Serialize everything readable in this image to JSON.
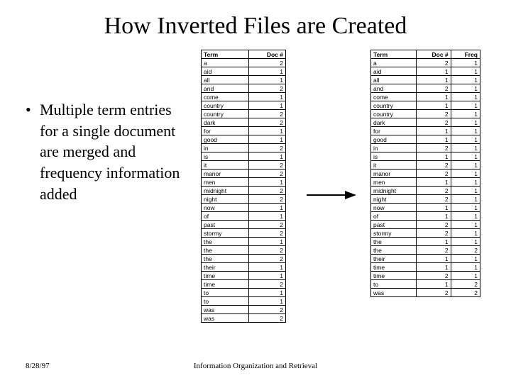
{
  "title": "How Inverted Files are Created",
  "bullet": {
    "text": "Multiple term entries for a single document are merged and frequency information added"
  },
  "footer": {
    "date": "8/28/97",
    "center": "Information Organization and Retrieval"
  },
  "table1": {
    "headers": [
      "Term",
      "Doc #"
    ],
    "rows": [
      [
        "a",
        "2"
      ],
      [
        "aid",
        "1"
      ],
      [
        "all",
        "1"
      ],
      [
        "and",
        "2"
      ],
      [
        "come",
        "1"
      ],
      [
        "country",
        "1"
      ],
      [
        "country",
        "2"
      ],
      [
        "dark",
        "2"
      ],
      [
        "for",
        "1"
      ],
      [
        "good",
        "1"
      ],
      [
        "in",
        "2"
      ],
      [
        "is",
        "1"
      ],
      [
        "it",
        "2"
      ],
      [
        "manor",
        "2"
      ],
      [
        "men",
        "1"
      ],
      [
        "midnight",
        "2"
      ],
      [
        "night",
        "2"
      ],
      [
        "now",
        "1"
      ],
      [
        "of",
        "1"
      ],
      [
        "past",
        "2"
      ],
      [
        "stormy",
        "2"
      ],
      [
        "the",
        "1"
      ],
      [
        "the",
        "2"
      ],
      [
        "the",
        "2"
      ],
      [
        "their",
        "1"
      ],
      [
        "time",
        "1"
      ],
      [
        "time",
        "2"
      ],
      [
        "to",
        "1"
      ],
      [
        "to",
        "1"
      ],
      [
        "was",
        "2"
      ],
      [
        "was",
        "2"
      ]
    ]
  },
  "table2": {
    "headers": [
      "Term",
      "Doc #",
      "Freq"
    ],
    "rows": [
      [
        "a",
        "2",
        "1"
      ],
      [
        "aid",
        "1",
        "1"
      ],
      [
        "all",
        "1",
        "1"
      ],
      [
        "and",
        "2",
        "1"
      ],
      [
        "come",
        "1",
        "1"
      ],
      [
        "country",
        "1",
        "1"
      ],
      [
        "country",
        "2",
        "1"
      ],
      [
        "dark",
        "2",
        "1"
      ],
      [
        "for",
        "1",
        "1"
      ],
      [
        "good",
        "1",
        "1"
      ],
      [
        "in",
        "2",
        "1"
      ],
      [
        "is",
        "1",
        "1"
      ],
      [
        "it",
        "2",
        "1"
      ],
      [
        "manor",
        "2",
        "1"
      ],
      [
        "men",
        "1",
        "1"
      ],
      [
        "midnight",
        "2",
        "1"
      ],
      [
        "night",
        "2",
        "1"
      ],
      [
        "now",
        "1",
        "1"
      ],
      [
        "of",
        "1",
        "1"
      ],
      [
        "past",
        "2",
        "1"
      ],
      [
        "stormy",
        "2",
        "1"
      ],
      [
        "the",
        "1",
        "1"
      ],
      [
        "the",
        "2",
        "2"
      ],
      [
        "their",
        "1",
        "1"
      ],
      [
        "time",
        "1",
        "1"
      ],
      [
        "time",
        "2",
        "1"
      ],
      [
        "to",
        "1",
        "2"
      ],
      [
        "was",
        "2",
        "2"
      ]
    ]
  },
  "colors": {
    "text": "#000000",
    "background": "#ffffff",
    "border": "#000000"
  }
}
